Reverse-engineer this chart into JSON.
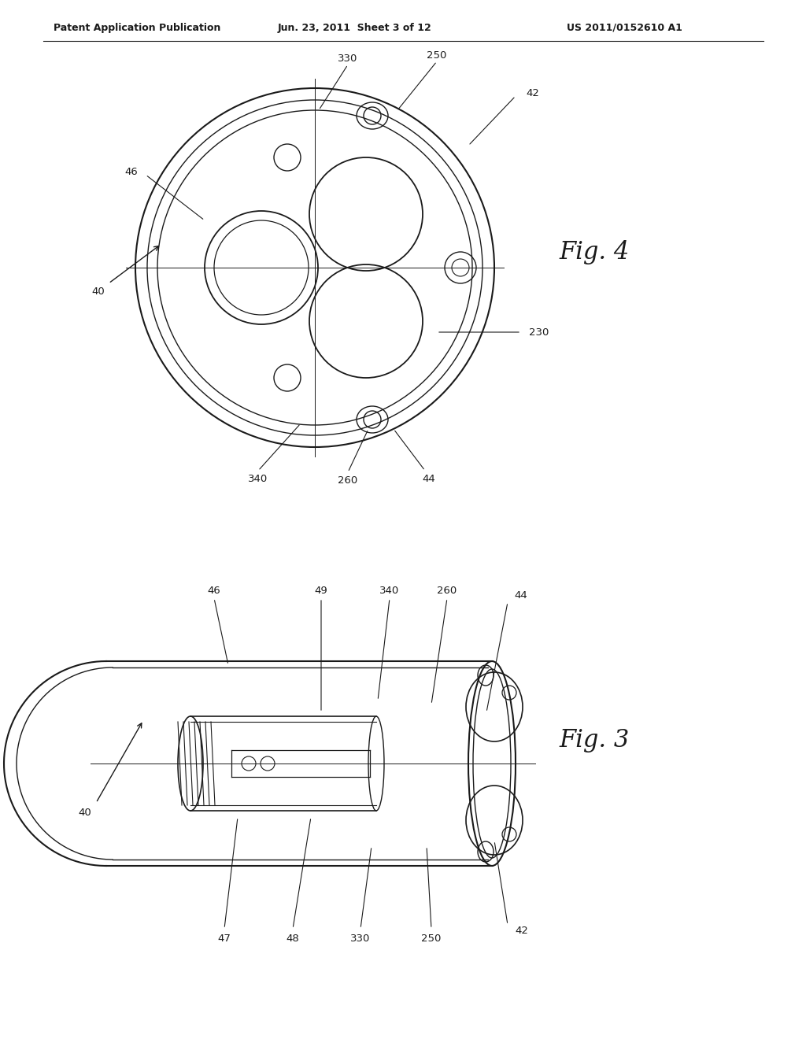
{
  "bg_color": "#ffffff",
  "line_color": "#1a1a1a",
  "header_left": "Patent Application Publication",
  "header_center": "Jun. 23, 2011  Sheet 3 of 12",
  "header_right": "US 2011/0152610 A1",
  "fig4_label": "Fig. 4",
  "fig3_label": "Fig. 3"
}
